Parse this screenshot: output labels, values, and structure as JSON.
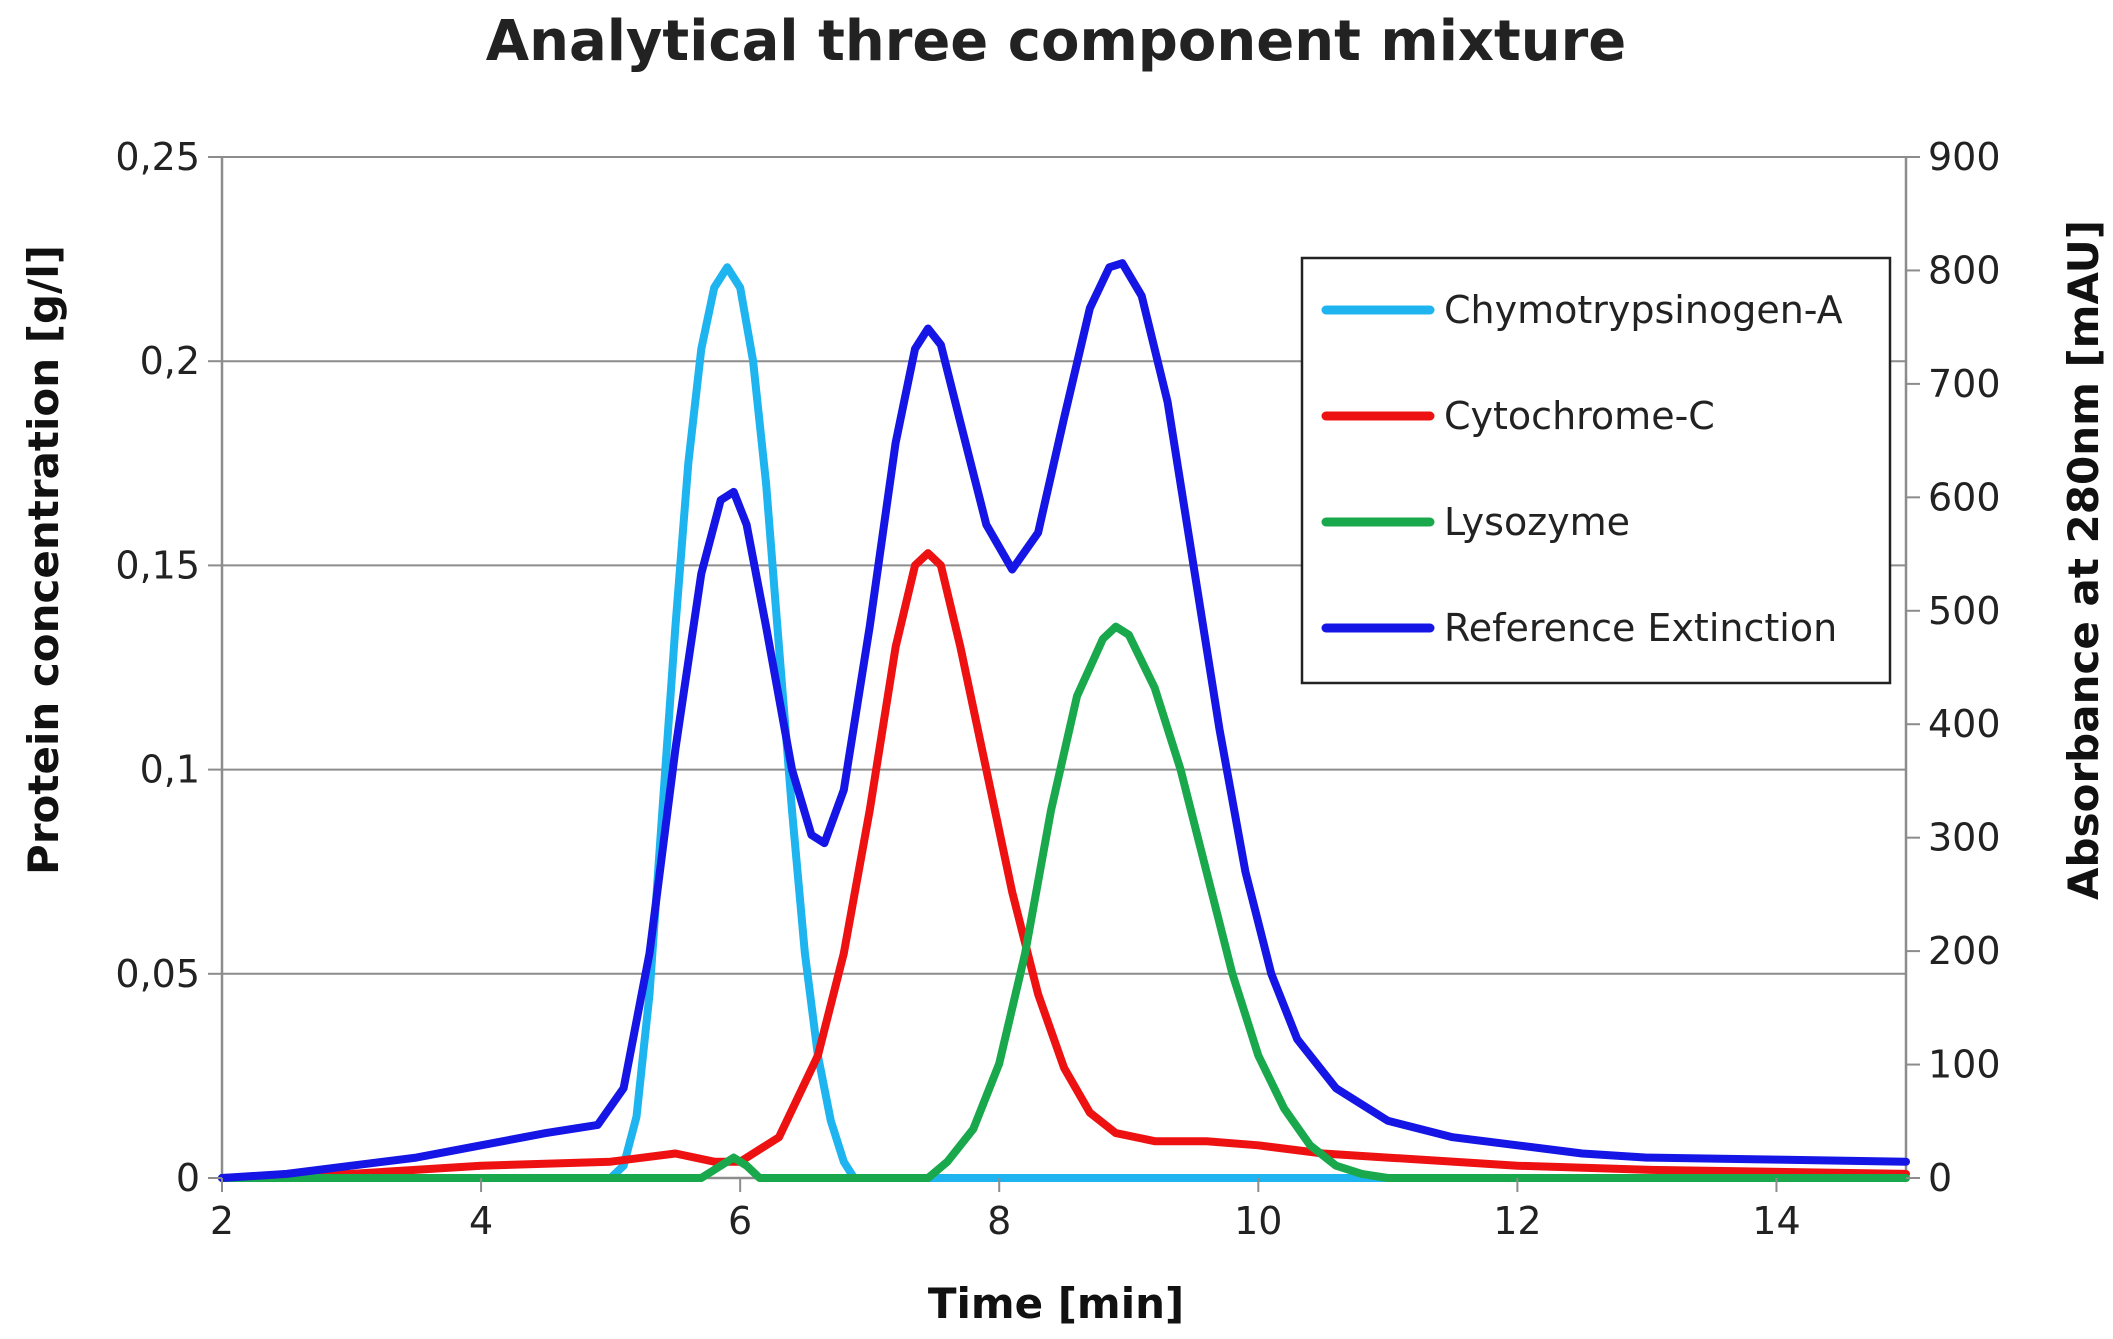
{
  "chart_data": {
    "type": "line",
    "title": "Analytical three component mixture",
    "xlabel": "Time [min]",
    "ylabel_left": "Protein concentration [g/l]",
    "ylabel_right": "Absorbance at 280nm [mAU]",
    "xlim": [
      2,
      15
    ],
    "ylim_left": [
      0,
      0.25
    ],
    "ylim_right": [
      0,
      900
    ],
    "x_ticks": [
      "2",
      "4",
      "6",
      "8",
      "10",
      "12",
      "14"
    ],
    "x_tick_values": [
      2,
      4,
      6,
      8,
      10,
      12,
      14
    ],
    "y_left_ticks": [
      "0",
      "0,05",
      "0,1",
      "0,15",
      "0,2",
      "0,25"
    ],
    "y_left_tick_values": [
      0,
      0.05,
      0.1,
      0.15,
      0.2,
      0.25
    ],
    "y_right_ticks": [
      "0",
      "100",
      "200",
      "300",
      "400",
      "500",
      "600",
      "700",
      "800",
      "900"
    ],
    "y_right_tick_values": [
      0,
      100,
      200,
      300,
      400,
      500,
      600,
      700,
      800,
      900
    ],
    "grid": "horizontal",
    "legend_position": "top-right",
    "series": [
      {
        "name": "Chymotrypsinogen-A",
        "axis": "left",
        "color": "#1eb4ef",
        "points": [
          [
            2,
            0
          ],
          [
            5.0,
            0
          ],
          [
            5.1,
            0.003
          ],
          [
            5.2,
            0.015
          ],
          [
            5.3,
            0.045
          ],
          [
            5.4,
            0.09
          ],
          [
            5.5,
            0.135
          ],
          [
            5.6,
            0.175
          ],
          [
            5.7,
            0.203
          ],
          [
            5.8,
            0.218
          ],
          [
            5.9,
            0.223
          ],
          [
            6.0,
            0.218
          ],
          [
            6.1,
            0.2
          ],
          [
            6.2,
            0.17
          ],
          [
            6.3,
            0.13
          ],
          [
            6.4,
            0.09
          ],
          [
            6.5,
            0.055
          ],
          [
            6.6,
            0.03
          ],
          [
            6.7,
            0.014
          ],
          [
            6.8,
            0.004
          ],
          [
            6.88,
            0
          ],
          [
            15,
            0
          ]
        ]
      },
      {
        "name": "Cytochrome-C",
        "axis": "left",
        "color": "#ee1111",
        "points": [
          [
            2,
            0
          ],
          [
            3,
            0.001
          ],
          [
            4,
            0.003
          ],
          [
            5,
            0.004
          ],
          [
            5.5,
            0.006
          ],
          [
            5.8,
            0.004
          ],
          [
            6.0,
            0.004
          ],
          [
            6.3,
            0.01
          ],
          [
            6.6,
            0.03
          ],
          [
            6.8,
            0.055
          ],
          [
            7.0,
            0.09
          ],
          [
            7.2,
            0.13
          ],
          [
            7.35,
            0.15
          ],
          [
            7.45,
            0.153
          ],
          [
            7.55,
            0.15
          ],
          [
            7.7,
            0.13
          ],
          [
            7.9,
            0.1
          ],
          [
            8.1,
            0.07
          ],
          [
            8.3,
            0.045
          ],
          [
            8.5,
            0.027
          ],
          [
            8.7,
            0.016
          ],
          [
            8.9,
            0.011
          ],
          [
            9.2,
            0.009
          ],
          [
            9.6,
            0.009
          ],
          [
            10.0,
            0.008
          ],
          [
            10.5,
            0.006
          ],
          [
            11,
            0.005
          ],
          [
            12,
            0.003
          ],
          [
            13,
            0.002
          ],
          [
            15,
            0.001
          ]
        ]
      },
      {
        "name": "Lysozyme",
        "axis": "left",
        "color": "#1aa84c",
        "points": [
          [
            2,
            0
          ],
          [
            5.7,
            0
          ],
          [
            5.85,
            0.003
          ],
          [
            5.95,
            0.005
          ],
          [
            6.05,
            0.003
          ],
          [
            6.15,
            0
          ],
          [
            7.45,
            0
          ],
          [
            7.6,
            0.004
          ],
          [
            7.8,
            0.012
          ],
          [
            8.0,
            0.028
          ],
          [
            8.2,
            0.055
          ],
          [
            8.4,
            0.09
          ],
          [
            8.6,
            0.118
          ],
          [
            8.8,
            0.132
          ],
          [
            8.9,
            0.135
          ],
          [
            9.0,
            0.133
          ],
          [
            9.2,
            0.12
          ],
          [
            9.4,
            0.1
          ],
          [
            9.6,
            0.075
          ],
          [
            9.8,
            0.05
          ],
          [
            10.0,
            0.03
          ],
          [
            10.2,
            0.017
          ],
          [
            10.4,
            0.008
          ],
          [
            10.6,
            0.003
          ],
          [
            10.8,
            0.001
          ],
          [
            11,
            0
          ],
          [
            15,
            0
          ]
        ]
      },
      {
        "name": "Reference Extinction",
        "axis": "left",
        "color": "#1515e6",
        "points": [
          [
            2,
            0
          ],
          [
            2.5,
            0.001
          ],
          [
            3,
            0.003
          ],
          [
            3.5,
            0.005
          ],
          [
            4,
            0.008
          ],
          [
            4.5,
            0.011
          ],
          [
            4.9,
            0.013
          ],
          [
            5.1,
            0.022
          ],
          [
            5.3,
            0.055
          ],
          [
            5.5,
            0.105
          ],
          [
            5.7,
            0.148
          ],
          [
            5.85,
            0.166
          ],
          [
            5.95,
            0.168
          ],
          [
            6.05,
            0.16
          ],
          [
            6.2,
            0.135
          ],
          [
            6.4,
            0.1
          ],
          [
            6.55,
            0.084
          ],
          [
            6.65,
            0.082
          ],
          [
            6.8,
            0.095
          ],
          [
            7.0,
            0.135
          ],
          [
            7.2,
            0.18
          ],
          [
            7.35,
            0.203
          ],
          [
            7.45,
            0.208
          ],
          [
            7.55,
            0.204
          ],
          [
            7.7,
            0.185
          ],
          [
            7.9,
            0.16
          ],
          [
            8.1,
            0.149
          ],
          [
            8.3,
            0.158
          ],
          [
            8.5,
            0.186
          ],
          [
            8.7,
            0.213
          ],
          [
            8.85,
            0.223
          ],
          [
            8.95,
            0.224
          ],
          [
            9.1,
            0.216
          ],
          [
            9.3,
            0.19
          ],
          [
            9.5,
            0.15
          ],
          [
            9.7,
            0.11
          ],
          [
            9.9,
            0.075
          ],
          [
            10.1,
            0.05
          ],
          [
            10.3,
            0.034
          ],
          [
            10.6,
            0.022
          ],
          [
            11,
            0.014
          ],
          [
            11.5,
            0.01
          ],
          [
            12,
            0.008
          ],
          [
            12.5,
            0.006
          ],
          [
            13,
            0.005
          ],
          [
            14,
            0.0045
          ],
          [
            15,
            0.004
          ]
        ]
      }
    ]
  }
}
